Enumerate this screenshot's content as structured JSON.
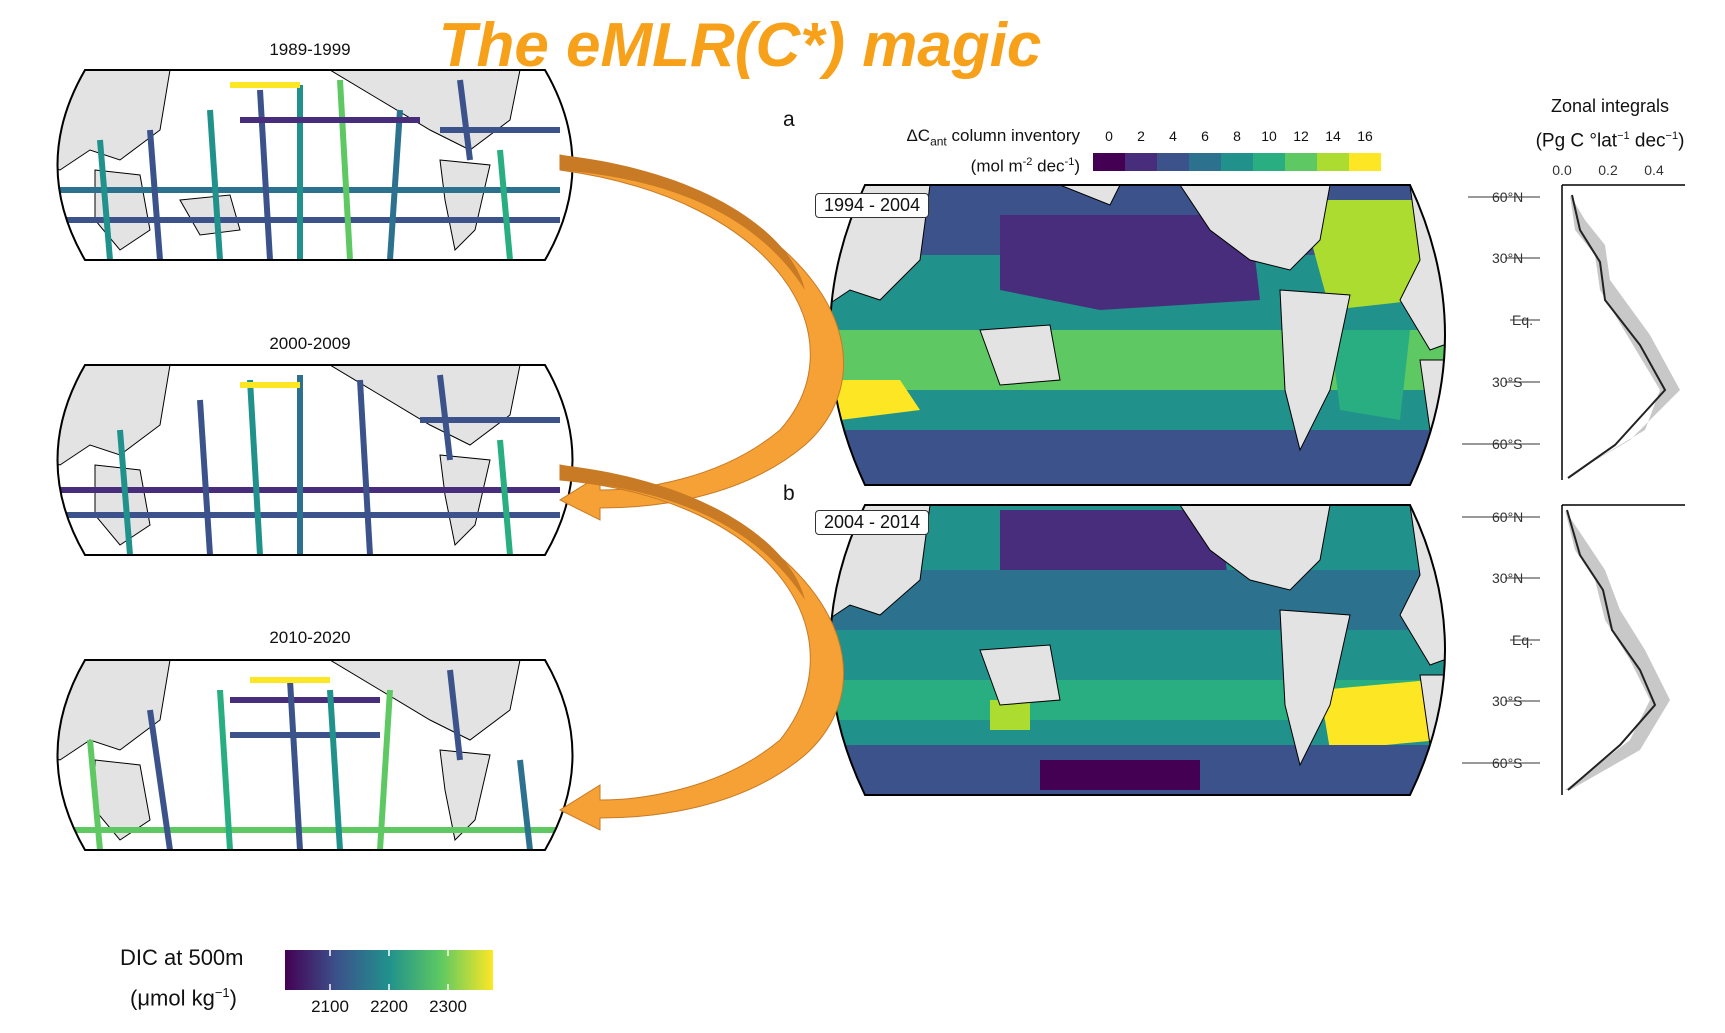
{
  "title": "The eMLR(C*) magic",
  "left_maps": [
    {
      "period": "1989-1999"
    },
    {
      "period": "2000-2009"
    },
    {
      "period": "2010-2020"
    }
  ],
  "panels": [
    {
      "letter": "a",
      "years": "1994 - 2004"
    },
    {
      "letter": "b",
      "years": "2004 - 2014"
    }
  ],
  "cant_legend": {
    "title_line1_prefix": "ΔC",
    "title_line1_sub": "ant",
    "title_line1_suffix": " column inventory",
    "title_line2": "(mol m",
    "title_line2_sup": "-2",
    "title_line2_end": " dec",
    "title_line2_sup2": "-1",
    "title_line2_close": ")",
    "ticks": [
      "0",
      "2",
      "4",
      "6",
      "8",
      "10",
      "12",
      "14",
      "16"
    ],
    "colors": [
      "#440154",
      "#472d7b",
      "#3b528b",
      "#2c728e",
      "#21918c",
      "#28ae80",
      "#5ec962",
      "#addc30",
      "#fde725"
    ]
  },
  "zonal": {
    "title": "Zonal integrals",
    "unit": "Pg C °lat",
    "unit_sup1": "−1",
    "unit_mid": " dec",
    "unit_sup2": "−1",
    "xticks": [
      "0.0",
      "0.2",
      "0.4"
    ],
    "lat_labels": [
      "60°N",
      "30°N",
      "Eq.",
      "30°S",
      "60°S"
    ]
  },
  "dic_legend": {
    "title": "DIC at 500m",
    "unit": "μmol kg",
    "unit_sup": "−1",
    "ticks": [
      "2100",
      "2200",
      "2300"
    ]
  },
  "colors": {
    "accent": "#f7a11a",
    "arrow": "#f5a135",
    "arrow_dark": "#c97a24",
    "land": "#e3e3e3"
  }
}
